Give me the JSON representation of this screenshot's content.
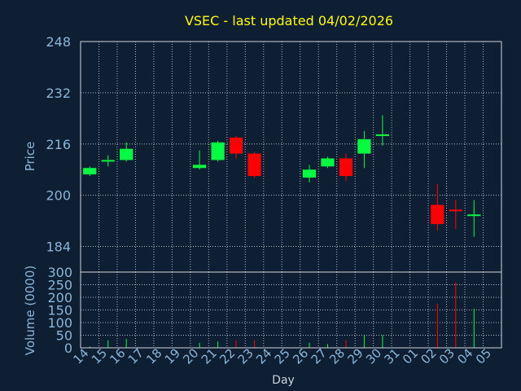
{
  "chart_data": [
    {
      "type": "candlestick",
      "title": "VSEC - last updated 04/02/2026",
      "ylabel": "Price",
      "ylim": [
        176,
        248
      ],
      "yticks": [
        248,
        232,
        216,
        200,
        184
      ],
      "grid": true,
      "days": [
        "14",
        "15",
        "16",
        "17",
        "18",
        "19",
        "20",
        "21",
        "22",
        "23",
        "24",
        "25",
        "26",
        "27",
        "28",
        "29",
        "30",
        "31",
        "01",
        "02",
        "03",
        "04",
        "05"
      ],
      "candles": [
        {
          "day": "14",
          "open": 206.5,
          "close": 208.5,
          "high": 209,
          "low": 206
        },
        {
          "day": "15",
          "open": 210.5,
          "close": 211.0,
          "high": 212.5,
          "low": 209
        },
        {
          "day": "16",
          "open": 211,
          "close": 214.5,
          "high": 216.5,
          "low": 210.5
        },
        {
          "day": "20",
          "open": 208.5,
          "close": 209.5,
          "high": 214,
          "low": 208
        },
        {
          "day": "21",
          "open": 211,
          "close": 216.5,
          "high": 217,
          "low": 210.5
        },
        {
          "day": "22",
          "open": 218,
          "close": 213,
          "high": 218.5,
          "low": 211.5
        },
        {
          "day": "23",
          "open": 213,
          "close": 206,
          "high": 213.5,
          "low": 205.5
        },
        {
          "day": "26",
          "open": 205.5,
          "close": 208,
          "high": 209.5,
          "low": 204
        },
        {
          "day": "27",
          "open": 209,
          "close": 211.5,
          "high": 212,
          "low": 208.5
        },
        {
          "day": "28",
          "open": 211.5,
          "close": 206,
          "high": 213,
          "low": 204.5
        },
        {
          "day": "29",
          "open": 213,
          "close": 217.5,
          "high": 220,
          "low": 208.5
        },
        {
          "day": "30",
          "open": 218.5,
          "close": 219,
          "high": 225,
          "low": 215.5
        },
        {
          "day": "02",
          "open": 197,
          "close": 191,
          "high": 203.5,
          "low": 189
        },
        {
          "day": "03",
          "open": 195.5,
          "close": 195,
          "high": 198.5,
          "low": 189.5
        },
        {
          "day": "04",
          "open": 193.5,
          "close": 194,
          "high": 198.5,
          "low": 187
        }
      ]
    },
    {
      "type": "bar",
      "ylabel": "Volume (0000)",
      "xlabel": "Day",
      "ylim": [
        0,
        300
      ],
      "yticks": [
        0,
        50,
        100,
        150,
        200,
        250,
        300
      ],
      "grid": true,
      "categories": [
        "14",
        "15",
        "16",
        "17",
        "18",
        "19",
        "20",
        "21",
        "22",
        "23",
        "24",
        "25",
        "26",
        "27",
        "28",
        "29",
        "30",
        "31",
        "01",
        "02",
        "03",
        "04",
        "05"
      ],
      "values": [
        {
          "day": "14",
          "value": 5,
          "direction": "up"
        },
        {
          "day": "15",
          "value": 30,
          "direction": "up"
        },
        {
          "day": "16",
          "value": 35,
          "direction": "up"
        },
        {
          "day": "20",
          "value": 20,
          "direction": "up"
        },
        {
          "day": "21",
          "value": 25,
          "direction": "up"
        },
        {
          "day": "22",
          "value": 30,
          "direction": "down"
        },
        {
          "day": "23",
          "value": 30,
          "direction": "down"
        },
        {
          "day": "26",
          "value": 20,
          "direction": "up"
        },
        {
          "day": "27",
          "value": 15,
          "direction": "up"
        },
        {
          "day": "28",
          "value": 30,
          "direction": "down"
        },
        {
          "day": "29",
          "value": 50,
          "direction": "up"
        },
        {
          "day": "30",
          "value": 50,
          "direction": "up"
        },
        {
          "day": "02",
          "value": 175,
          "direction": "down"
        },
        {
          "day": "03",
          "value": 260,
          "direction": "down"
        },
        {
          "day": "04",
          "value": 155,
          "direction": "up"
        }
      ]
    }
  ],
  "colors": {
    "background": "#0f1f33",
    "up": "#00ff40",
    "down": "#ff0000",
    "grid": "#b0b8c4",
    "axis_text": "#8ab4d8",
    "title": "#ffff00",
    "frame": "#d0d4da"
  }
}
